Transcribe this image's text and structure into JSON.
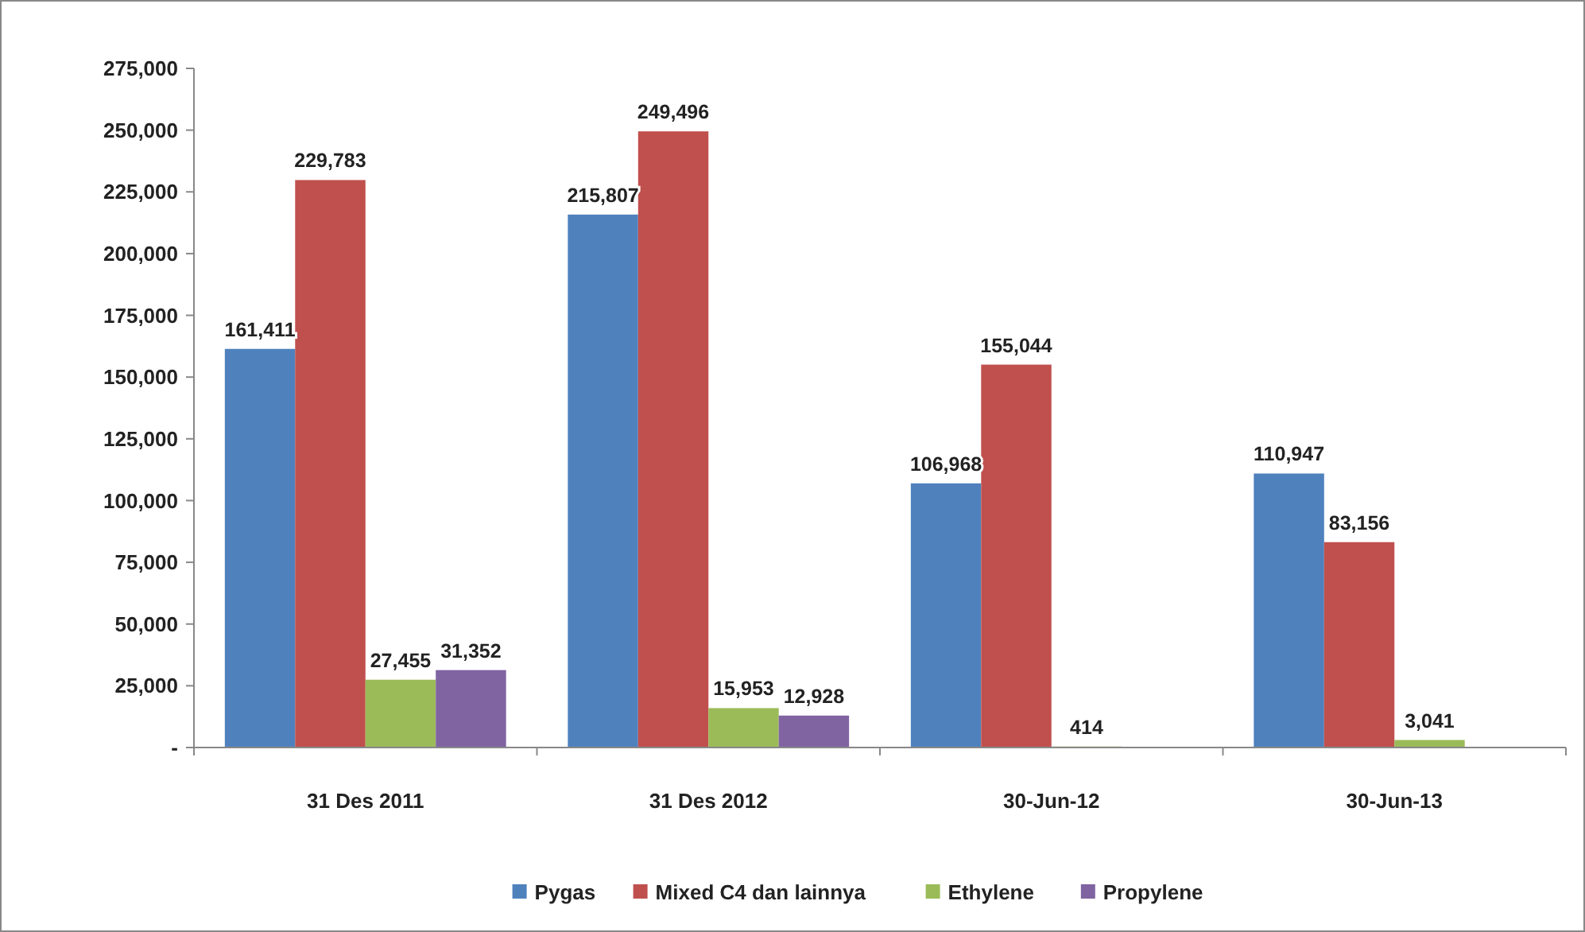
{
  "chart_data": {
    "type": "bar",
    "categories": [
      "31 Des 2011",
      "31 Des 2012",
      "30-Jun-12",
      "30-Jun-13"
    ],
    "series": [
      {
        "name": "Pygas",
        "color": "#4f81bd",
        "values": [
          161411,
          215807,
          106968,
          110947
        ],
        "value_labels": [
          "161,411",
          "215,807",
          "106,968",
          "110,947"
        ]
      },
      {
        "name": "Mixed C4 dan lainnya",
        "color": "#c0504d",
        "values": [
          229783,
          249496,
          155044,
          83156
        ],
        "value_labels": [
          "229,783",
          "249,496",
          "155,044",
          "83,156"
        ]
      },
      {
        "name": "Ethylene",
        "color": "#9bbb59",
        "values": [
          27455,
          15953,
          414,
          3041
        ],
        "value_labels": [
          "27,455",
          "15,953",
          "414",
          "3,041"
        ]
      },
      {
        "name": "Propylene",
        "color": "#8064a2",
        "values": [
          31352,
          12928,
          null,
          null
        ],
        "value_labels": [
          "31,352",
          "12,928",
          null,
          null
        ]
      }
    ],
    "ylim": [
      0,
      275000
    ],
    "yticks": [
      {
        "value": 0,
        "label": "-"
      },
      {
        "value": 25000,
        "label": "25,000"
      },
      {
        "value": 50000,
        "label": "50,000"
      },
      {
        "value": 75000,
        "label": "75,000"
      },
      {
        "value": 100000,
        "label": "100,000"
      },
      {
        "value": 125000,
        "label": "125,000"
      },
      {
        "value": 150000,
        "label": "150,000"
      },
      {
        "value": 175000,
        "label": "175,000"
      },
      {
        "value": 200000,
        "label": "200,000"
      },
      {
        "value": 225000,
        "label": "225,000"
      },
      {
        "value": 250000,
        "label": "250,000"
      },
      {
        "value": 275000,
        "label": "275,000"
      }
    ],
    "legend": "bottom",
    "grid": false
  }
}
